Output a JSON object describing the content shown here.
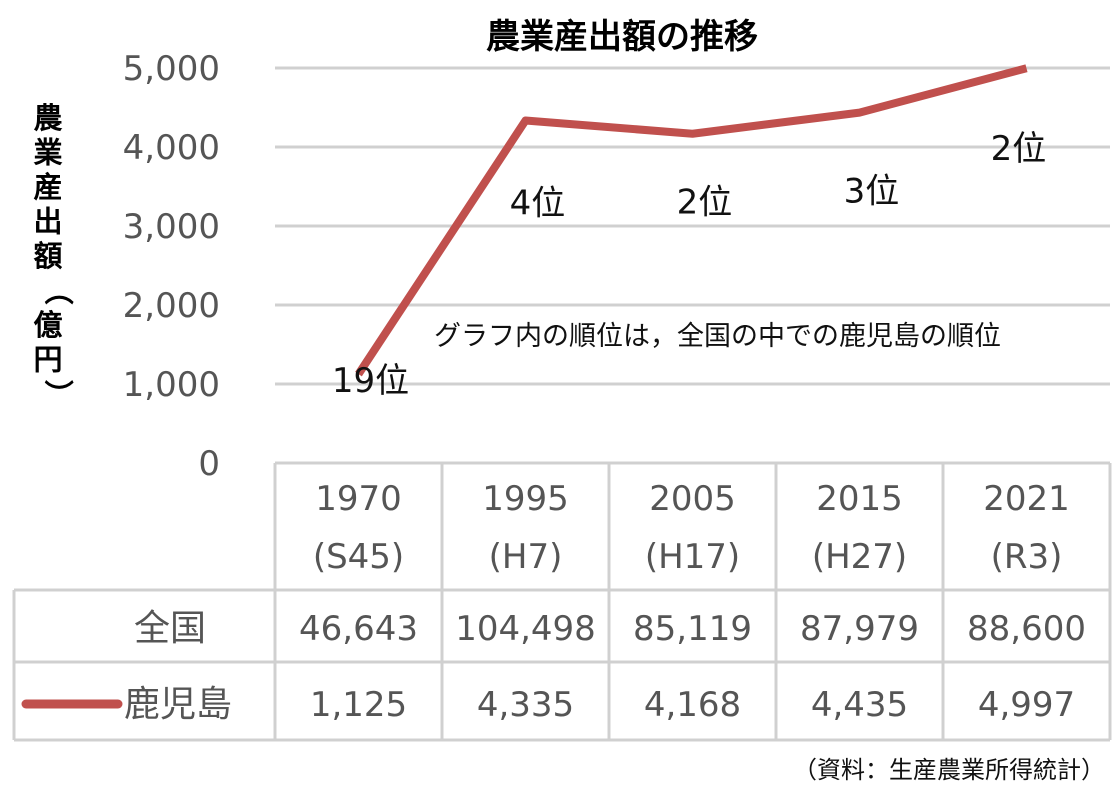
{
  "chart_data": {
    "type": "line",
    "title": "農業産出額の推移",
    "ylabel": "農業産出額（億円）",
    "ylim": [
      0,
      5000
    ],
    "yticks": [
      "0",
      "1,000",
      "2,000",
      "3,000",
      "4,000",
      "5,000"
    ],
    "categories": [
      {
        "year": "1970",
        "era": "(S45)"
      },
      {
        "year": "1995",
        "era": "(H7)"
      },
      {
        "year": "2005",
        "era": "(H17)"
      },
      {
        "year": "2015",
        "era": "(H27)"
      },
      {
        "year": "2021",
        "era": "(R3)"
      }
    ],
    "series": [
      {
        "name": "鹿児島",
        "values": [
          1125,
          4335,
          4168,
          4435,
          4997
        ],
        "color": "#c0504d"
      }
    ],
    "table": [
      {
        "label": "全国",
        "cells": [
          "46,643",
          "104,498",
          "85,119",
          "87,979",
          "88,600"
        ]
      },
      {
        "label": "鹿児島",
        "cells": [
          "1,125",
          "4,335",
          "4,168",
          "4,435",
          "4,997"
        ]
      }
    ],
    "rank_labels": [
      "19位",
      "4位",
      "2位",
      "3位",
      "2位"
    ],
    "annotation": "グラフ内の順位は，全国の中での鹿児島の順位",
    "source": "（資料：生産農業所得統計）",
    "grid": true
  }
}
